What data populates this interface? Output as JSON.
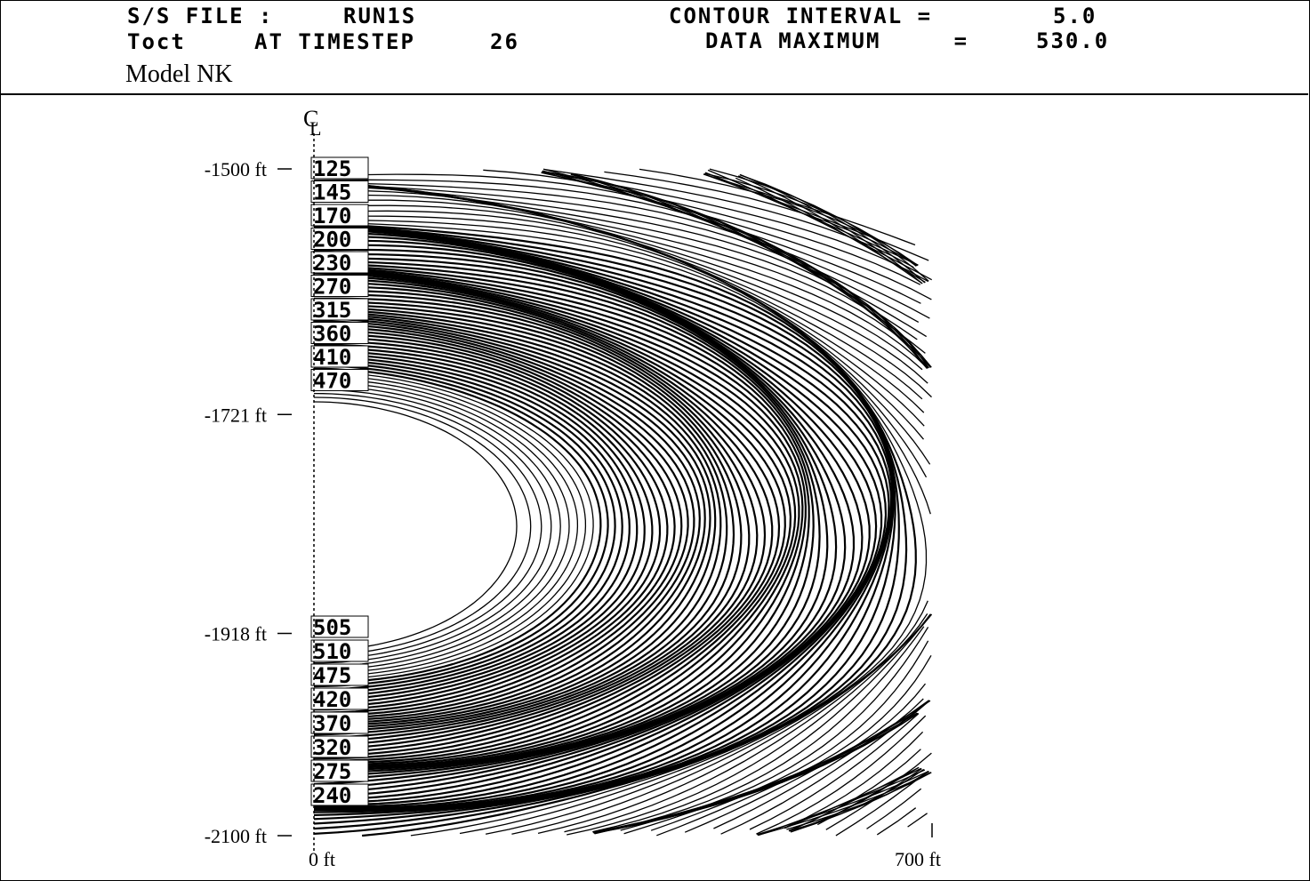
{
  "header": {
    "file_label": "S/S FILE :",
    "file_name": "RUN1S",
    "variable": "Toct",
    "timestep_label": "AT TIMESTEP",
    "timestep": "26",
    "interval_label": "CONTOUR INTERVAL =",
    "interval_value": "5.0",
    "maximum_label": "DATA MAXIMUM     =",
    "maximum_value": "530.0",
    "model": "Model NK"
  },
  "chart_data": {
    "type": "contour",
    "centerline_label": "CL",
    "contour_interval": 5.0,
    "data_maximum": 530.0,
    "x_ticks": [
      "0 ft",
      "700 ft"
    ],
    "xlim": [
      0,
      700
    ],
    "y_ticks": [
      {
        "value": -1500,
        "label": "-1500 ft"
      },
      {
        "value": -1721,
        "label": "-1721 ft"
      },
      {
        "value": -1918,
        "label": "-1918 ft"
      },
      {
        "value": -2100,
        "label": "-2100 ft"
      }
    ],
    "ylim": [
      -2100,
      -1500
    ],
    "upper_contour_labels": [
      "125",
      "145",
      "170",
      "200",
      "230",
      "270",
      "315",
      "360",
      "410",
      "470"
    ],
    "lower_contour_labels": [
      "505",
      "510",
      "475",
      "420",
      "370",
      "320",
      "275",
      "240"
    ]
  }
}
